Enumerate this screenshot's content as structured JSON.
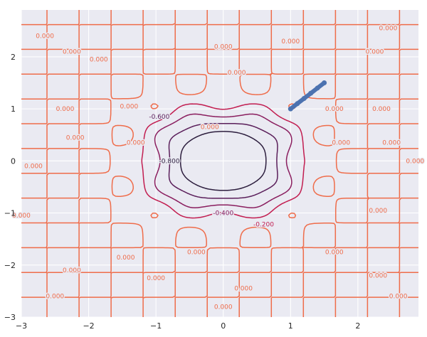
{
  "chart_data": {
    "type": "contour",
    "title": "",
    "xlabel": "",
    "ylabel": "",
    "xlim": [
      -3,
      2.9
    ],
    "ylim": [
      -3,
      2.9
    ],
    "x_ticks": [
      -3,
      -2,
      -1,
      0,
      1,
      2
    ],
    "x_tick_labels": [
      "−3",
      "−2",
      "−1",
      "0",
      "1",
      "2"
    ],
    "y_ticks": [
      -3,
      -2,
      -1,
      0,
      1,
      2
    ],
    "y_tick_labels": [
      "−3",
      "−2",
      "−1",
      "0",
      "1",
      "2"
    ],
    "grid": true,
    "background": "#eaeaf2",
    "contour_levels": [
      {
        "level": -0.8,
        "color": "#2d1e3e"
      },
      {
        "level": -0.6,
        "color": "#5a1e5a"
      },
      {
        "level": -0.4,
        "color": "#8a1e5f"
      },
      {
        "level": -0.2,
        "color": "#c21d50"
      },
      {
        "level": 0.0,
        "color": "#ef6c4a"
      },
      {
        "level": 0.2,
        "color": "#f5a87e"
      }
    ],
    "contour_labels": [
      {
        "x": -0.8,
        "y": 0.0,
        "text": "-0.800",
        "level": -0.8
      },
      {
        "x": -0.95,
        "y": 0.85,
        "text": "-0.600",
        "level": -0.6
      },
      {
        "x": 0.0,
        "y": -1.0,
        "text": "-0.400",
        "level": -0.4
      },
      {
        "x": 0.6,
        "y": -1.22,
        "text": "-0.200",
        "level": -0.2
      },
      {
        "x": -0.2,
        "y": 0.65,
        "text": "0.000",
        "level": 0.0
      },
      {
        "x": 0.0,
        "y": 2.2,
        "text": "0.000",
        "level": 0.0
      },
      {
        "x": 0.2,
        "y": 1.7,
        "text": "0.000",
        "level": 0.0
      },
      {
        "x": -2.65,
        "y": 2.4,
        "text": "0.000",
        "level": 0.0
      },
      {
        "x": -2.25,
        "y": 2.1,
        "text": "0.000",
        "level": 0.0
      },
      {
        "x": -1.85,
        "y": 1.95,
        "text": "0.000",
        "level": 0.0
      },
      {
        "x": -2.35,
        "y": 1.0,
        "text": "0.000",
        "level": 0.0
      },
      {
        "x": -2.2,
        "y": 0.45,
        "text": "0.000",
        "level": 0.0
      },
      {
        "x": -2.82,
        "y": -0.1,
        "text": "0.000",
        "level": 0.0
      },
      {
        "x": -3.0,
        "y": -1.05,
        "text": "0.000",
        "level": 0.0
      },
      {
        "x": -1.4,
        "y": 1.05,
        "text": "0.000",
        "level": 0.0
      },
      {
        "x": -1.3,
        "y": 0.35,
        "text": "0.000",
        "level": 0.0
      },
      {
        "x": -1.45,
        "y": -1.85,
        "text": "0.000",
        "level": 0.0
      },
      {
        "x": -0.4,
        "y": -1.75,
        "text": "0.000",
        "level": 0.0
      },
      {
        "x": -1.0,
        "y": -2.25,
        "text": "0.000",
        "level": 0.0
      },
      {
        "x": -2.25,
        "y": -2.1,
        "text": "0.000",
        "level": 0.0
      },
      {
        "x": -2.5,
        "y": -2.6,
        "text": "0.000",
        "level": 0.0
      },
      {
        "x": 0.3,
        "y": -2.45,
        "text": "0.000",
        "level": 0.0
      },
      {
        "x": 0.0,
        "y": -2.8,
        "text": "0.000",
        "level": 0.0
      },
      {
        "x": 1.0,
        "y": 2.3,
        "text": "0.000",
        "level": 0.0
      },
      {
        "x": 1.65,
        "y": 1.0,
        "text": "0.000",
        "level": 0.0
      },
      {
        "x": 1.75,
        "y": 0.35,
        "text": "0.000",
        "level": 0.0
      },
      {
        "x": 2.45,
        "y": 2.55,
        "text": "0.000",
        "level": 0.0
      },
      {
        "x": 2.25,
        "y": 2.1,
        "text": "0.000",
        "level": 0.0
      },
      {
        "x": 2.35,
        "y": 1.0,
        "text": "0.000",
        "level": 0.0
      },
      {
        "x": 2.5,
        "y": 0.35,
        "text": "0.000",
        "level": 0.0
      },
      {
        "x": 2.85,
        "y": 0.0,
        "text": "0.000",
        "level": 0.0
      },
      {
        "x": 2.3,
        "y": -0.95,
        "text": "0.000",
        "level": 0.0
      },
      {
        "x": 1.65,
        "y": -1.75,
        "text": "0.000",
        "level": 0.0
      },
      {
        "x": 2.3,
        "y": -2.2,
        "text": "0.000",
        "level": 0.0
      },
      {
        "x": 2.6,
        "y": -2.6,
        "text": "0.000",
        "level": 0.0
      }
    ],
    "path_series": {
      "color": "#4c72b0",
      "points": [
        [
          1.0,
          1.0
        ],
        [
          1.1,
          1.1
        ],
        [
          1.2,
          1.2
        ],
        [
          1.3,
          1.3
        ],
        [
          1.4,
          1.4
        ],
        [
          1.5,
          1.5
        ]
      ]
    }
  }
}
